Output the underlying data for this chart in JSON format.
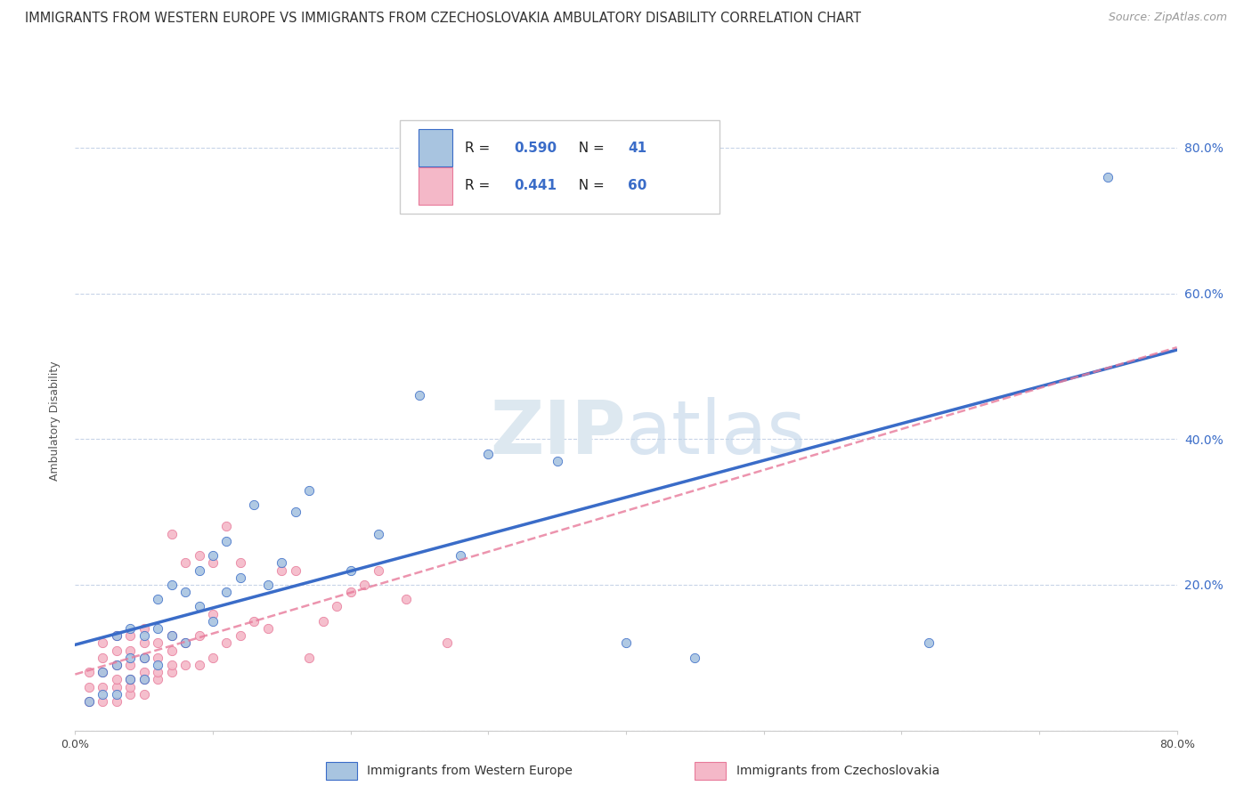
{
  "title": "IMMIGRANTS FROM WESTERN EUROPE VS IMMIGRANTS FROM CZECHOSLOVAKIA AMBULATORY DISABILITY CORRELATION CHART",
  "source": "Source: ZipAtlas.com",
  "ylabel": "Ambulatory Disability",
  "xlim": [
    0.0,
    0.8
  ],
  "ylim": [
    0.0,
    0.85
  ],
  "watermark": "ZIPatlas",
  "series1_color": "#a8c4e0",
  "series2_color": "#f4b8c8",
  "line1_color": "#3a6cc8",
  "line2_color": "#e87a9a",
  "R1": 0.59,
  "N1": 41,
  "R2": 0.441,
  "N2": 60,
  "legend1": "Immigrants from Western Europe",
  "legend2": "Immigrants from Czechoslovakia",
  "blue_scatter_x": [
    0.01,
    0.02,
    0.02,
    0.03,
    0.03,
    0.03,
    0.04,
    0.04,
    0.04,
    0.05,
    0.05,
    0.05,
    0.06,
    0.06,
    0.06,
    0.07,
    0.07,
    0.08,
    0.08,
    0.09,
    0.09,
    0.1,
    0.1,
    0.11,
    0.11,
    0.12,
    0.13,
    0.14,
    0.15,
    0.16,
    0.17,
    0.2,
    0.22,
    0.25,
    0.28,
    0.3,
    0.35,
    0.4,
    0.45,
    0.62,
    0.75
  ],
  "blue_scatter_y": [
    0.04,
    0.05,
    0.08,
    0.05,
    0.09,
    0.13,
    0.07,
    0.1,
    0.14,
    0.07,
    0.1,
    0.13,
    0.09,
    0.14,
    0.18,
    0.13,
    0.2,
    0.12,
    0.19,
    0.17,
    0.22,
    0.15,
    0.24,
    0.19,
    0.26,
    0.21,
    0.31,
    0.2,
    0.23,
    0.3,
    0.33,
    0.22,
    0.27,
    0.46,
    0.24,
    0.38,
    0.37,
    0.12,
    0.1,
    0.12,
    0.76
  ],
  "pink_scatter_x": [
    0.01,
    0.01,
    0.01,
    0.02,
    0.02,
    0.02,
    0.02,
    0.02,
    0.03,
    0.03,
    0.03,
    0.03,
    0.03,
    0.03,
    0.04,
    0.04,
    0.04,
    0.04,
    0.04,
    0.04,
    0.05,
    0.05,
    0.05,
    0.05,
    0.05,
    0.05,
    0.06,
    0.06,
    0.06,
    0.06,
    0.07,
    0.07,
    0.07,
    0.07,
    0.07,
    0.08,
    0.08,
    0.08,
    0.09,
    0.09,
    0.09,
    0.1,
    0.1,
    0.1,
    0.11,
    0.11,
    0.12,
    0.12,
    0.13,
    0.14,
    0.15,
    0.16,
    0.17,
    0.18,
    0.19,
    0.2,
    0.21,
    0.22,
    0.24,
    0.27
  ],
  "pink_scatter_y": [
    0.04,
    0.06,
    0.08,
    0.04,
    0.06,
    0.08,
    0.1,
    0.12,
    0.04,
    0.06,
    0.07,
    0.09,
    0.11,
    0.13,
    0.05,
    0.06,
    0.07,
    0.09,
    0.11,
    0.13,
    0.05,
    0.07,
    0.08,
    0.1,
    0.12,
    0.14,
    0.07,
    0.08,
    0.1,
    0.12,
    0.08,
    0.09,
    0.11,
    0.13,
    0.27,
    0.09,
    0.12,
    0.23,
    0.09,
    0.13,
    0.24,
    0.1,
    0.16,
    0.23,
    0.12,
    0.28,
    0.13,
    0.23,
    0.15,
    0.14,
    0.22,
    0.22,
    0.1,
    0.15,
    0.17,
    0.19,
    0.2,
    0.22,
    0.18,
    0.12
  ],
  "background_color": "#ffffff",
  "grid_color": "#c8d4e8"
}
